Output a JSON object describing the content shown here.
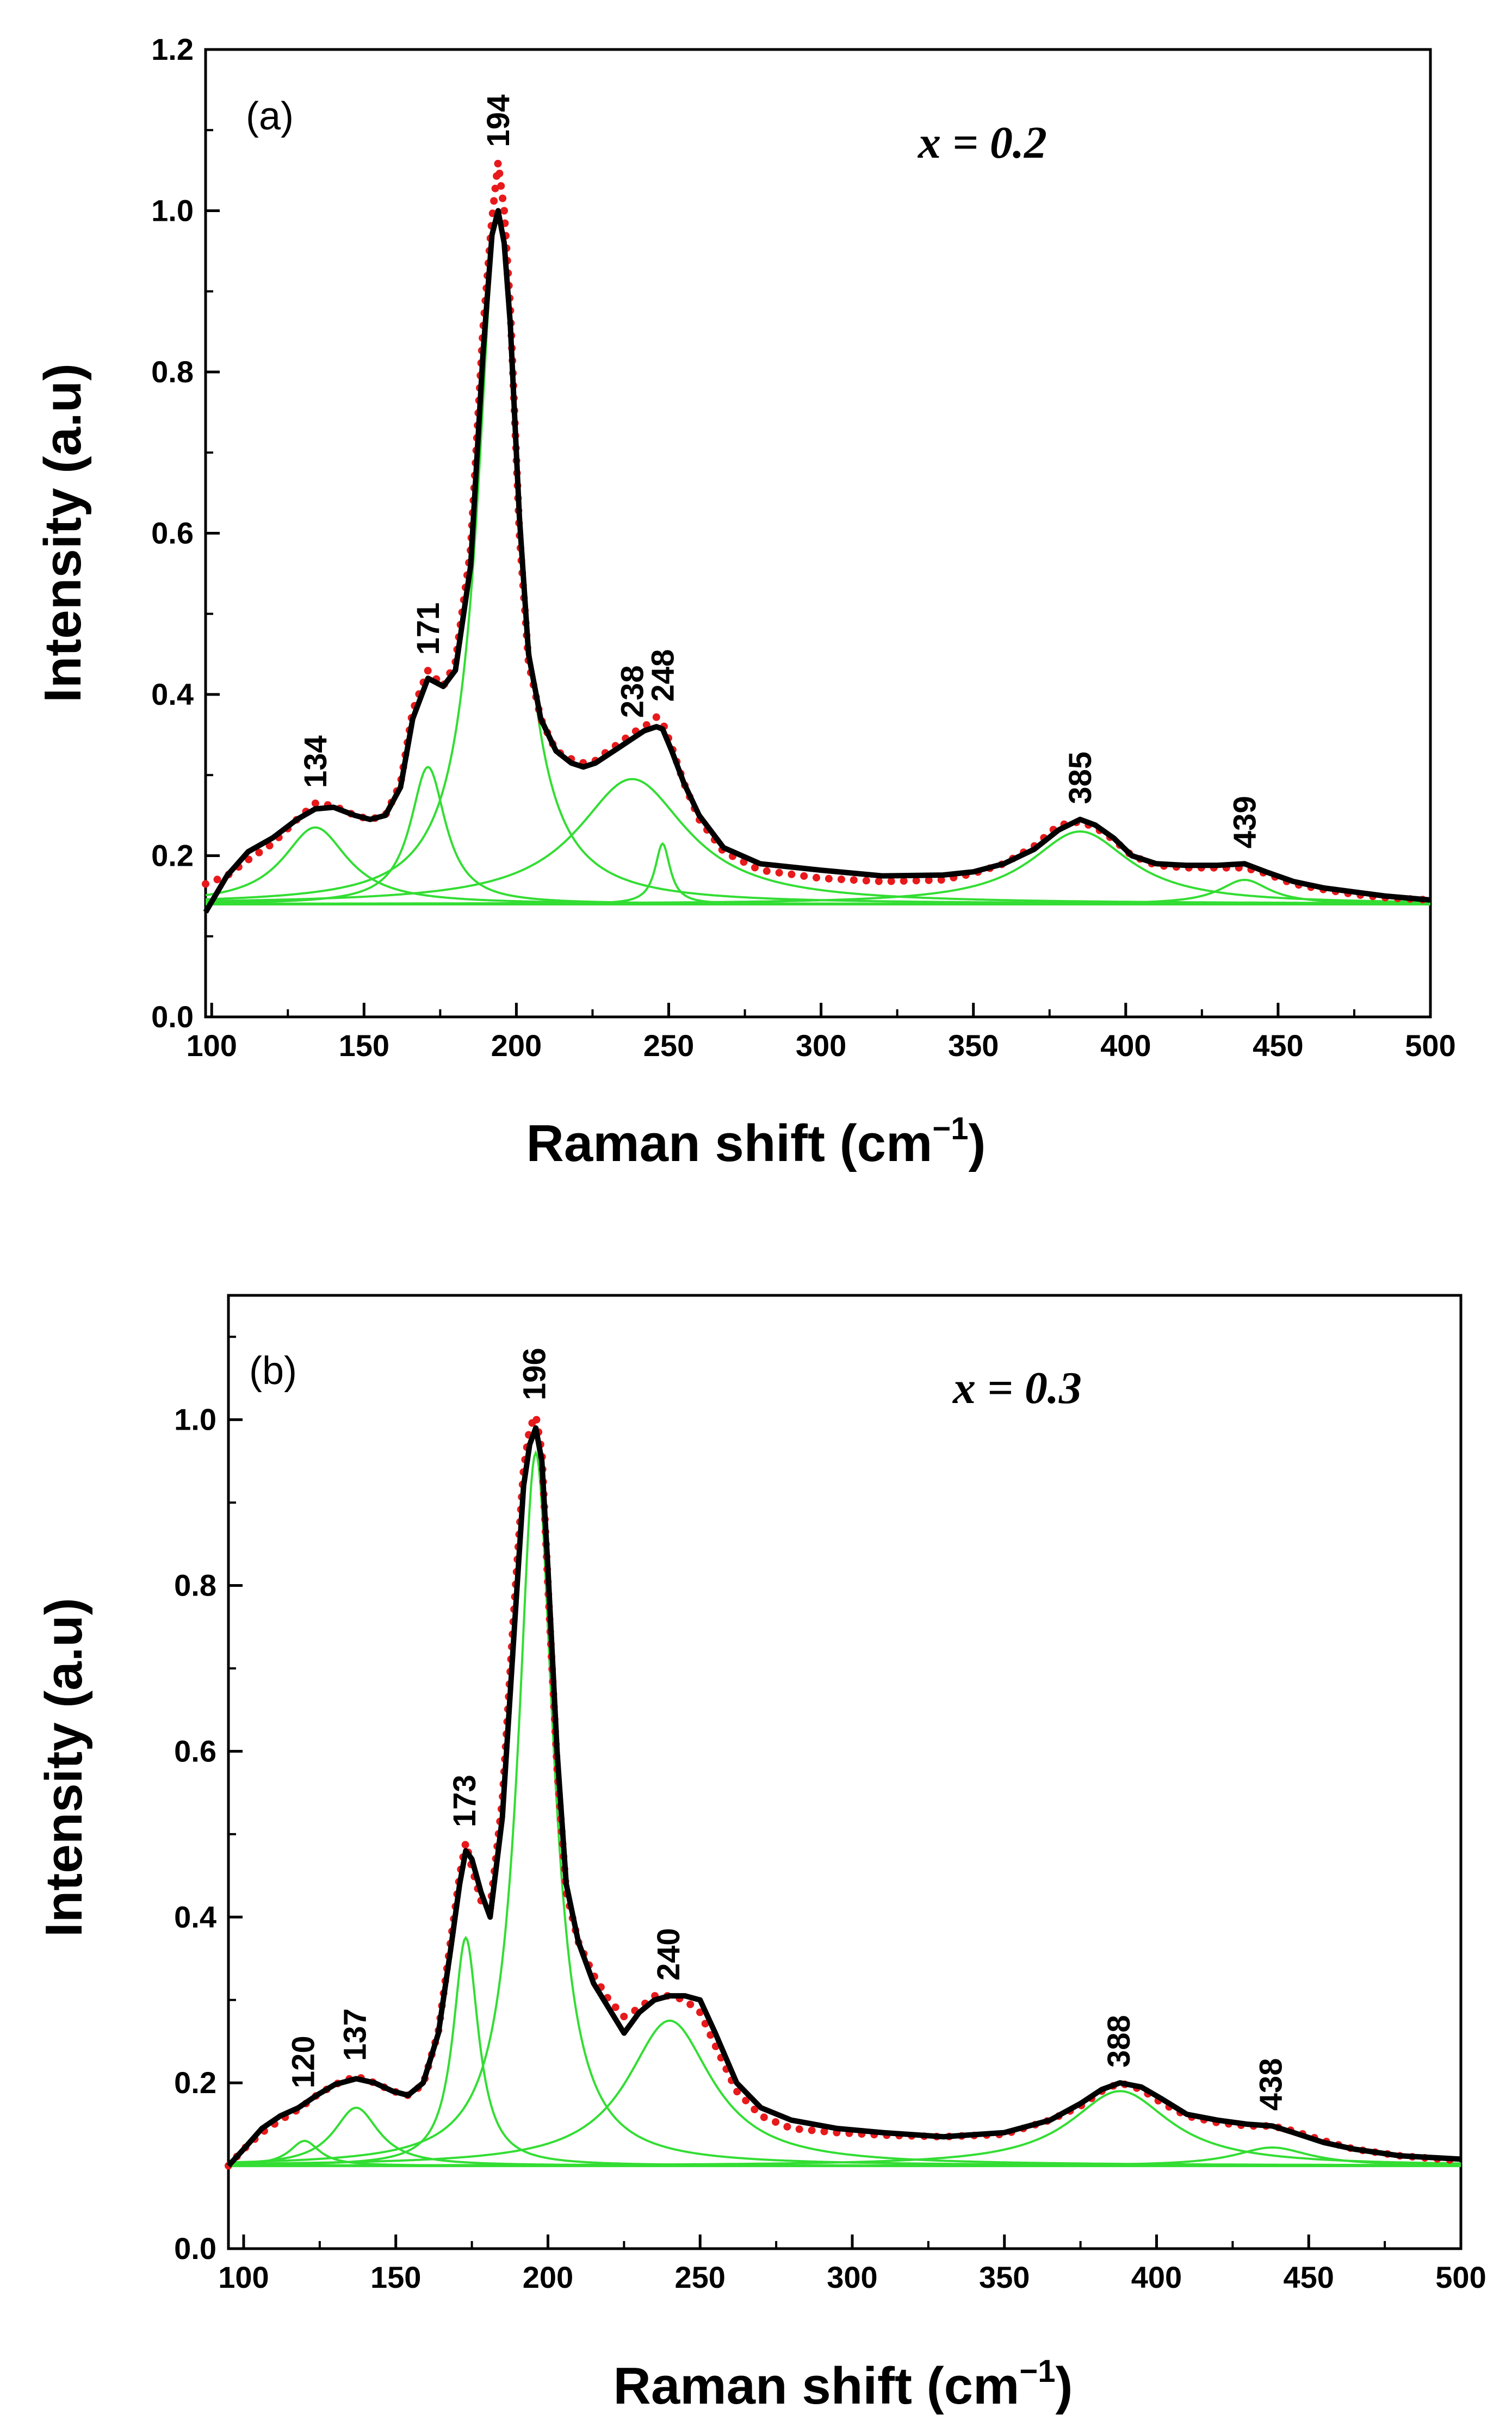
{
  "colors": {
    "fit": "#000000",
    "data": "#e8191b",
    "components": "#33dd33",
    "axes": "#000000"
  },
  "chart_data": [
    {
      "type": "line",
      "panel_label": "(a)",
      "composition_label": "x = 0.2",
      "xlabel": "Raman shift (cm",
      "xlabel_sup": "−1",
      "xlabel_close": ")",
      "ylabel": "Intensity (a.u)",
      "xlim": [
        98,
        500
      ],
      "ylim": [
        0,
        1.2
      ],
      "xticks": [
        "100",
        "150",
        "200",
        "250",
        "300",
        "350",
        "400",
        "450",
        "500"
      ],
      "yticks": [
        "0.0",
        "0.2",
        "0.4",
        "0.6",
        "0.8",
        "1.0",
        "1.2"
      ],
      "baseline": 0.14,
      "peaks": [
        {
          "label": "134",
          "center": 134,
          "height": 0.095,
          "hwhm": 13
        },
        {
          "label": "171",
          "center": 171,
          "height": 0.17,
          "hwhm": 7
        },
        {
          "label": "194",
          "center": 194,
          "height": 0.86,
          "hwhm": 8
        },
        {
          "label": "238",
          "center": 238,
          "height": 0.155,
          "hwhm": 22
        },
        {
          "label": "248",
          "center": 248,
          "height": 0.075,
          "hwhm": 3
        },
        {
          "label": "385",
          "center": 385,
          "height": 0.09,
          "hwhm": 20
        },
        {
          "label": "439",
          "center": 439,
          "height": 0.03,
          "hwhm": 10
        }
      ],
      "fit_curve": {
        "x": [
          98,
          105,
          112,
          120,
          128,
          134,
          140,
          147,
          152,
          157,
          162,
          166,
          171,
          176,
          180,
          185,
          189,
          192,
          194,
          196,
          198,
          201,
          204,
          208,
          213,
          218,
          222,
          226,
          230,
          234,
          238,
          242,
          246,
          248,
          251,
          255,
          260,
          268,
          280,
          300,
          320,
          340,
          350,
          360,
          370,
          378,
          385,
          390,
          396,
          402,
          410,
          420,
          430,
          439,
          446,
          455,
          465,
          475,
          485,
          500
        ],
        "y": [
          0.13,
          0.175,
          0.205,
          0.222,
          0.245,
          0.258,
          0.26,
          0.25,
          0.245,
          0.25,
          0.285,
          0.37,
          0.42,
          0.41,
          0.43,
          0.56,
          0.82,
          0.97,
          1.0,
          0.96,
          0.86,
          0.62,
          0.45,
          0.37,
          0.33,
          0.315,
          0.31,
          0.315,
          0.325,
          0.335,
          0.345,
          0.355,
          0.36,
          0.357,
          0.33,
          0.29,
          0.25,
          0.21,
          0.19,
          0.182,
          0.175,
          0.176,
          0.18,
          0.19,
          0.208,
          0.232,
          0.245,
          0.238,
          0.222,
          0.2,
          0.19,
          0.188,
          0.188,
          0.19,
          0.18,
          0.168,
          0.16,
          0.155,
          0.15,
          0.145
        ]
      },
      "data_points": {
        "x": [
          98,
          105,
          112,
          120,
          128,
          134,
          140,
          147,
          152,
          157,
          162,
          166,
          171,
          176,
          180,
          185,
          189,
          192,
          194,
          196,
          198,
          201,
          204,
          208,
          213,
          218,
          222,
          226,
          230,
          234,
          238,
          242,
          246,
          248,
          251,
          255,
          260,
          268,
          280,
          300,
          320,
          340,
          350,
          360,
          370,
          378,
          385,
          390,
          396,
          402,
          410,
          420,
          430,
          439,
          446,
          455,
          465,
          475,
          485,
          500
        ],
        "y": [
          0.165,
          0.175,
          0.195,
          0.215,
          0.245,
          0.265,
          0.262,
          0.25,
          0.245,
          0.25,
          0.29,
          0.38,
          0.43,
          0.41,
          0.44,
          0.58,
          0.85,
          0.99,
          1.06,
          1.0,
          0.88,
          0.6,
          0.44,
          0.37,
          0.33,
          0.32,
          0.315,
          0.318,
          0.33,
          0.34,
          0.352,
          0.36,
          0.372,
          0.365,
          0.335,
          0.29,
          0.245,
          0.205,
          0.182,
          0.172,
          0.168,
          0.17,
          0.178,
          0.19,
          0.212,
          0.238,
          0.242,
          0.235,
          0.22,
          0.2,
          0.188,
          0.185,
          0.185,
          0.185,
          0.178,
          0.165,
          0.158,
          0.152,
          0.148,
          0.145
        ]
      }
    },
    {
      "type": "line",
      "panel_label": "(b)",
      "composition_label": "x = 0.3",
      "xlabel": "Raman shift (cm",
      "xlabel_sup": "−1",
      "xlabel_close": ")",
      "ylabel": "Intensity (a.u)",
      "xlim": [
        95,
        500
      ],
      "ylim": [
        0,
        1.15
      ],
      "xticks": [
        "100",
        "150",
        "200",
        "250",
        "300",
        "350",
        "400",
        "450",
        "500"
      ],
      "yticks": [
        "0.0",
        "0.2",
        "0.4",
        "0.6",
        "0.8",
        "1.0"
      ],
      "baseline": 0.1,
      "peaks": [
        {
          "label": "120",
          "center": 120,
          "height": 0.03,
          "hwhm": 6
        },
        {
          "label": "137",
          "center": 137,
          "height": 0.07,
          "hwhm": 9
        },
        {
          "label": "173",
          "center": 173,
          "height": 0.275,
          "hwhm": 5
        },
        {
          "label": "196",
          "center": 196,
          "height": 0.86,
          "hwhm": 7
        },
        {
          "label": "240",
          "center": 240,
          "height": 0.175,
          "hwhm": 17
        },
        {
          "label": "388",
          "center": 388,
          "height": 0.09,
          "hwhm": 20
        },
        {
          "label": "438",
          "center": 438,
          "height": 0.022,
          "hwhm": 15
        }
      ],
      "fit_curve": {
        "x": [
          95,
          100,
          106,
          112,
          118,
          124,
          130,
          137,
          143,
          149,
          154,
          159,
          164,
          168,
          171,
          173,
          175,
          178,
          181,
          185,
          189,
          192,
          194,
          196,
          198,
          200,
          203,
          206,
          210,
          215,
          220,
          225,
          230,
          235,
          240,
          245,
          250,
          255,
          262,
          270,
          280,
          295,
          310,
          330,
          350,
          365,
          375,
          382,
          388,
          395,
          402,
          410,
          420,
          430,
          438,
          445,
          455,
          465,
          480,
          500
        ],
        "y": [
          0.1,
          0.12,
          0.145,
          0.16,
          0.17,
          0.185,
          0.198,
          0.205,
          0.2,
          0.19,
          0.185,
          0.2,
          0.26,
          0.36,
          0.44,
          0.48,
          0.47,
          0.43,
          0.4,
          0.52,
          0.75,
          0.92,
          0.97,
          0.99,
          0.95,
          0.82,
          0.6,
          0.44,
          0.37,
          0.32,
          0.29,
          0.26,
          0.285,
          0.3,
          0.305,
          0.305,
          0.3,
          0.26,
          0.2,
          0.17,
          0.155,
          0.145,
          0.14,
          0.135,
          0.14,
          0.155,
          0.175,
          0.192,
          0.2,
          0.195,
          0.18,
          0.162,
          0.155,
          0.15,
          0.148,
          0.14,
          0.128,
          0.12,
          0.112,
          0.108
        ]
      },
      "data_points": {
        "x": [
          95,
          100,
          106,
          112,
          118,
          124,
          130,
          137,
          143,
          149,
          154,
          159,
          164,
          168,
          171,
          173,
          175,
          178,
          181,
          185,
          189,
          192,
          194,
          196,
          198,
          200,
          203,
          206,
          210,
          215,
          220,
          225,
          230,
          235,
          240,
          245,
          250,
          255,
          262,
          270,
          280,
          295,
          310,
          330,
          350,
          365,
          375,
          382,
          388,
          395,
          402,
          410,
          420,
          430,
          438,
          445,
          455,
          465,
          480,
          500
        ],
        "y": [
          0.1,
          0.12,
          0.14,
          0.155,
          0.168,
          0.185,
          0.198,
          0.208,
          0.2,
          0.19,
          0.185,
          0.198,
          0.262,
          0.37,
          0.45,
          0.49,
          0.46,
          0.42,
          0.41,
          0.54,
          0.78,
          0.94,
          0.99,
          1.005,
          0.96,
          0.8,
          0.58,
          0.43,
          0.37,
          0.33,
          0.3,
          0.28,
          0.29,
          0.305,
          0.305,
          0.3,
          0.285,
          0.245,
          0.19,
          0.16,
          0.145,
          0.14,
          0.137,
          0.135,
          0.138,
          0.155,
          0.172,
          0.19,
          0.2,
          0.192,
          0.175,
          0.16,
          0.152,
          0.148,
          0.148,
          0.142,
          0.13,
          0.12,
          0.112,
          0.106
        ]
      }
    }
  ]
}
